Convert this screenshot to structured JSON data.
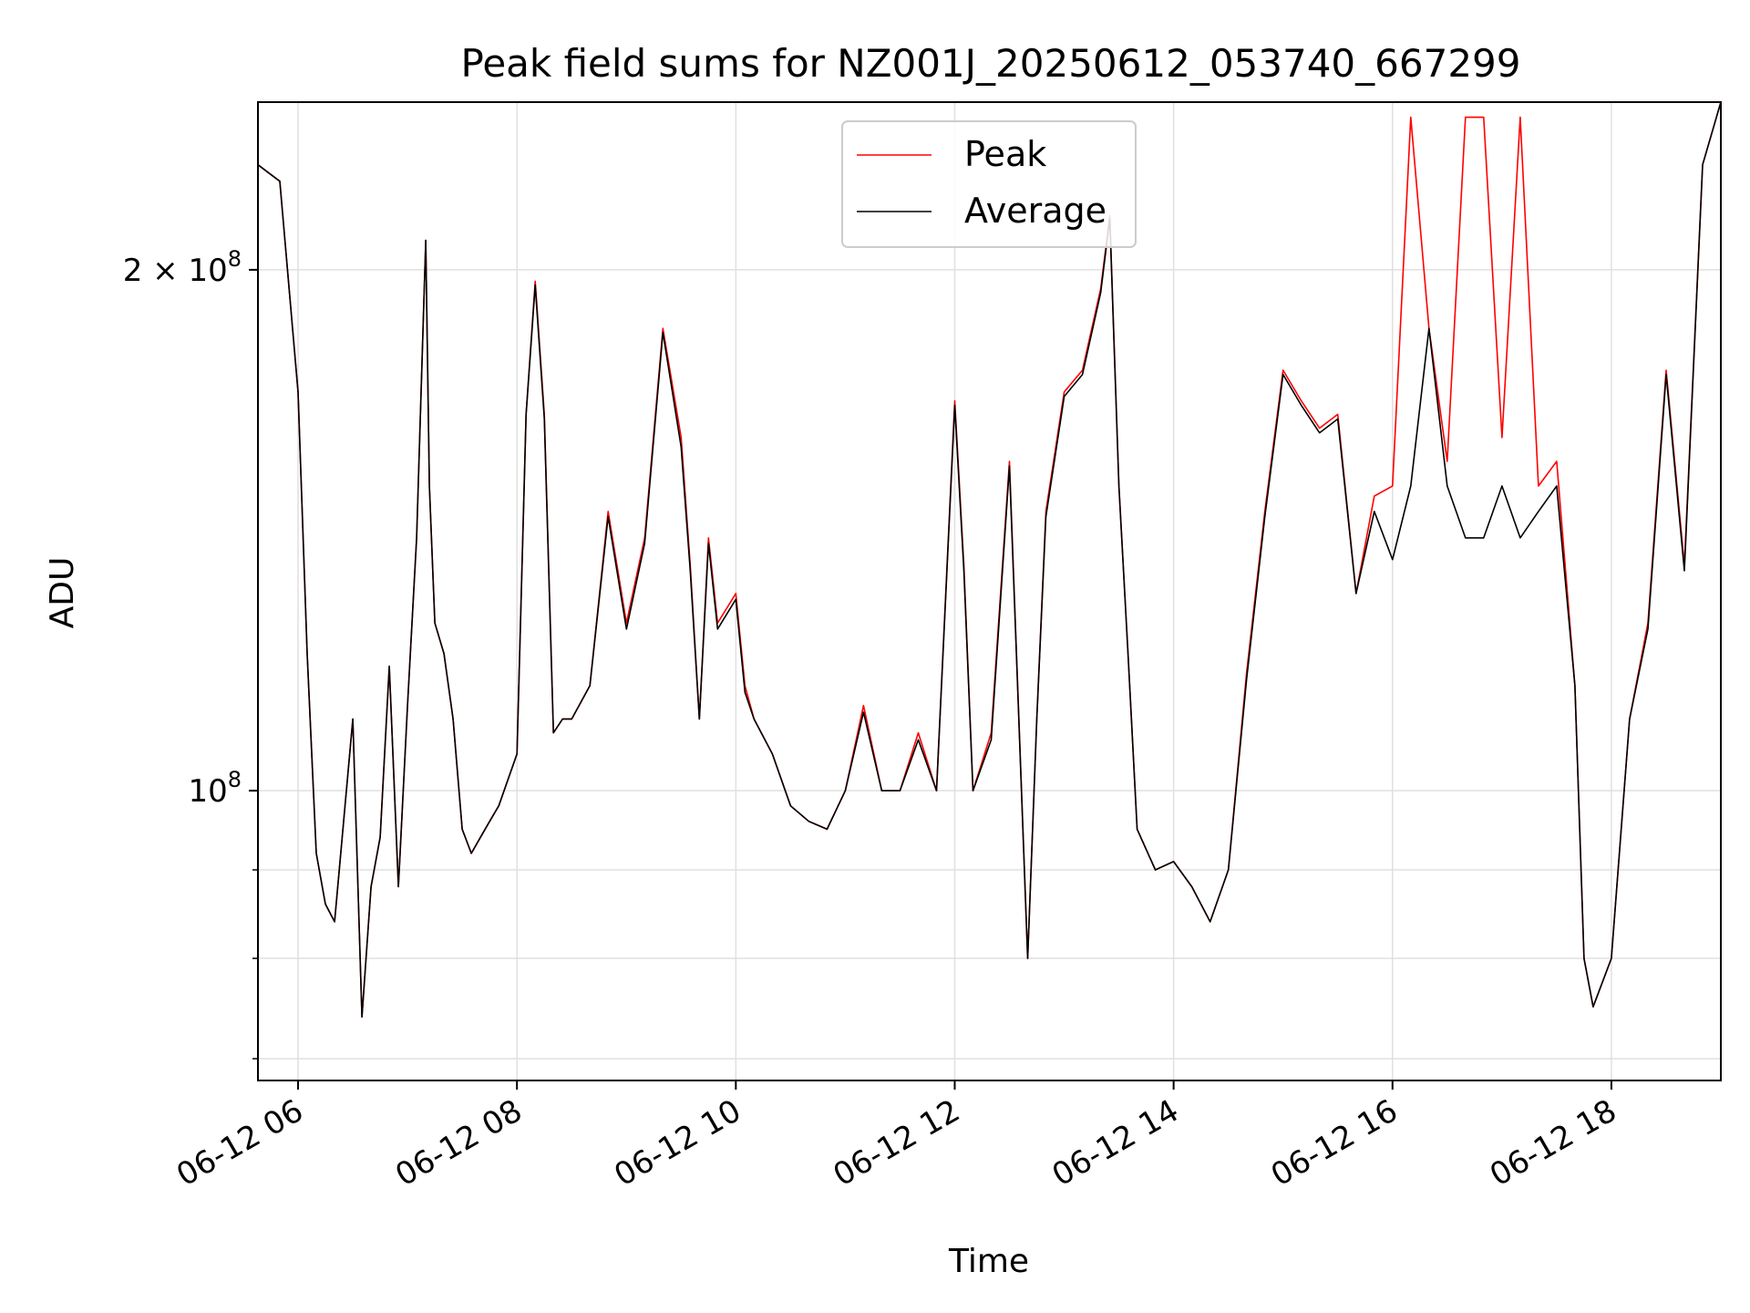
{
  "chart_data": {
    "type": "line",
    "title": "Peak field sums for NZ001J_20250612_053740_667299",
    "xlabel": "Time",
    "ylabel": "ADU",
    "y_scale": "log",
    "grid": true,
    "legend_placement": "top-center",
    "xlim": [
      "2025-06-12 05:38",
      "2025-06-12 19:00"
    ],
    "ylim": [
      68000000,
      250000000
    ],
    "x_ticks": [
      "06-12 06",
      "06-12 08",
      "06-12 10",
      "06-12 12",
      "06-12 14",
      "06-12 16",
      "06-12 18"
    ],
    "y_ticks": [
      {
        "value": 100000000,
        "mantissa": "",
        "base": "10",
        "exp": "8"
      },
      {
        "value": 200000000,
        "mantissa": "2 × ",
        "base": "10",
        "exp": "8"
      }
    ],
    "x": [
      "05:38",
      "05:50",
      "06:00",
      "06:05",
      "06:10",
      "06:15",
      "06:20",
      "06:30",
      "06:35",
      "06:40",
      "06:45",
      "06:50",
      "06:55",
      "07:00",
      "07:05",
      "07:10",
      "07:12",
      "07:15",
      "07:20",
      "07:25",
      "07:30",
      "07:35",
      "07:40",
      "07:45",
      "07:50",
      "08:00",
      "08:05",
      "08:10",
      "08:15",
      "08:20",
      "08:25",
      "08:30",
      "08:40",
      "08:50",
      "09:00",
      "09:10",
      "09:20",
      "09:30",
      "09:35",
      "09:40",
      "09:45",
      "09:50",
      "10:00",
      "10:05",
      "10:10",
      "10:20",
      "10:30",
      "10:40",
      "10:50",
      "11:00",
      "11:10",
      "11:20",
      "11:30",
      "11:40",
      "11:50",
      "12:00",
      "12:05",
      "12:10",
      "12:20",
      "12:30",
      "12:40",
      "12:45",
      "12:50",
      "13:00",
      "13:10",
      "13:20",
      "13:25",
      "13:30",
      "13:35",
      "13:40",
      "13:50",
      "14:00",
      "14:10",
      "14:20",
      "14:30",
      "14:40",
      "14:50",
      "15:00",
      "15:10",
      "15:20",
      "15:30",
      "15:40",
      "15:50",
      "16:00",
      "16:10",
      "16:20",
      "16:30",
      "16:40",
      "16:50",
      "17:00",
      "17:10",
      "17:20",
      "17:30",
      "17:40",
      "17:45",
      "17:50",
      "18:00",
      "18:10",
      "18:20",
      "18:30",
      "18:40",
      "18:50",
      "19:00"
    ],
    "series": [
      {
        "name": "Peak",
        "color": "#ff0000",
        "values": [
          230000000,
          225000000,
          170000000,
          120000000,
          92000000,
          86000000,
          84000000,
          110000000,
          74000000,
          88000000,
          94000000,
          118000000,
          88000000,
          112000000,
          140000000,
          208000000,
          150000000,
          125000000,
          120000000,
          110000000,
          95000000,
          92000000,
          94000000,
          96000000,
          98000000,
          105000000,
          165000000,
          197000000,
          165000000,
          108000000,
          110000000,
          110000000,
          115000000,
          145000000,
          125000000,
          140000000,
          185000000,
          160000000,
          135000000,
          110000000,
          140000000,
          125000000,
          130000000,
          115000000,
          110000000,
          105000000,
          98000000,
          96000000,
          95000000,
          100000000,
          112000000,
          100000000,
          100000000,
          108000000,
          100000000,
          168000000,
          135000000,
          100000000,
          108000000,
          155000000,
          80000000,
          110000000,
          145000000,
          170000000,
          175000000,
          195000000,
          215000000,
          150000000,
          120000000,
          95000000,
          90000000,
          91000000,
          88000000,
          84000000,
          90000000,
          117000000,
          145000000,
          175000000,
          168000000,
          162000000,
          165000000,
          130000000,
          148000000,
          150000000,
          245000000,
          185000000,
          155000000,
          245000000,
          245000000,
          160000000,
          245000000,
          150000000,
          155000000,
          115000000,
          80000000,
          75000000,
          80000000,
          110000000,
          125000000,
          175000000,
          135000000,
          230000000,
          250000000
        ]
      },
      {
        "name": "Average",
        "color": "#000000",
        "values": [
          230000000,
          225000000,
          170000000,
          120000000,
          92000000,
          86000000,
          84000000,
          110000000,
          74000000,
          88000000,
          94000000,
          118000000,
          88000000,
          112000000,
          140000000,
          208000000,
          150000000,
          125000000,
          120000000,
          110000000,
          95000000,
          92000000,
          94000000,
          96000000,
          98000000,
          105000000,
          165000000,
          196000000,
          164000000,
          108000000,
          110000000,
          110000000,
          115000000,
          144000000,
          124000000,
          139000000,
          184000000,
          158000000,
          134000000,
          110000000,
          139000000,
          124000000,
          129000000,
          114000000,
          110000000,
          105000000,
          98000000,
          96000000,
          95000000,
          100000000,
          111000000,
          100000000,
          100000000,
          107000000,
          100000000,
          167000000,
          134000000,
          100000000,
          107000000,
          154000000,
          80000000,
          110000000,
          144000000,
          169000000,
          174000000,
          194000000,
          214000000,
          150000000,
          120000000,
          95000000,
          90000000,
          91000000,
          88000000,
          84000000,
          90000000,
          116000000,
          144000000,
          174000000,
          167000000,
          161000000,
          164000000,
          130000000,
          145000000,
          136000000,
          150000000,
          185000000,
          150000000,
          140000000,
          140000000,
          150000000,
          140000000,
          145000000,
          150000000,
          115000000,
          80000000,
          75000000,
          80000000,
          110000000,
          124000000,
          174000000,
          134000000,
          230000000,
          250000000
        ]
      }
    ]
  }
}
